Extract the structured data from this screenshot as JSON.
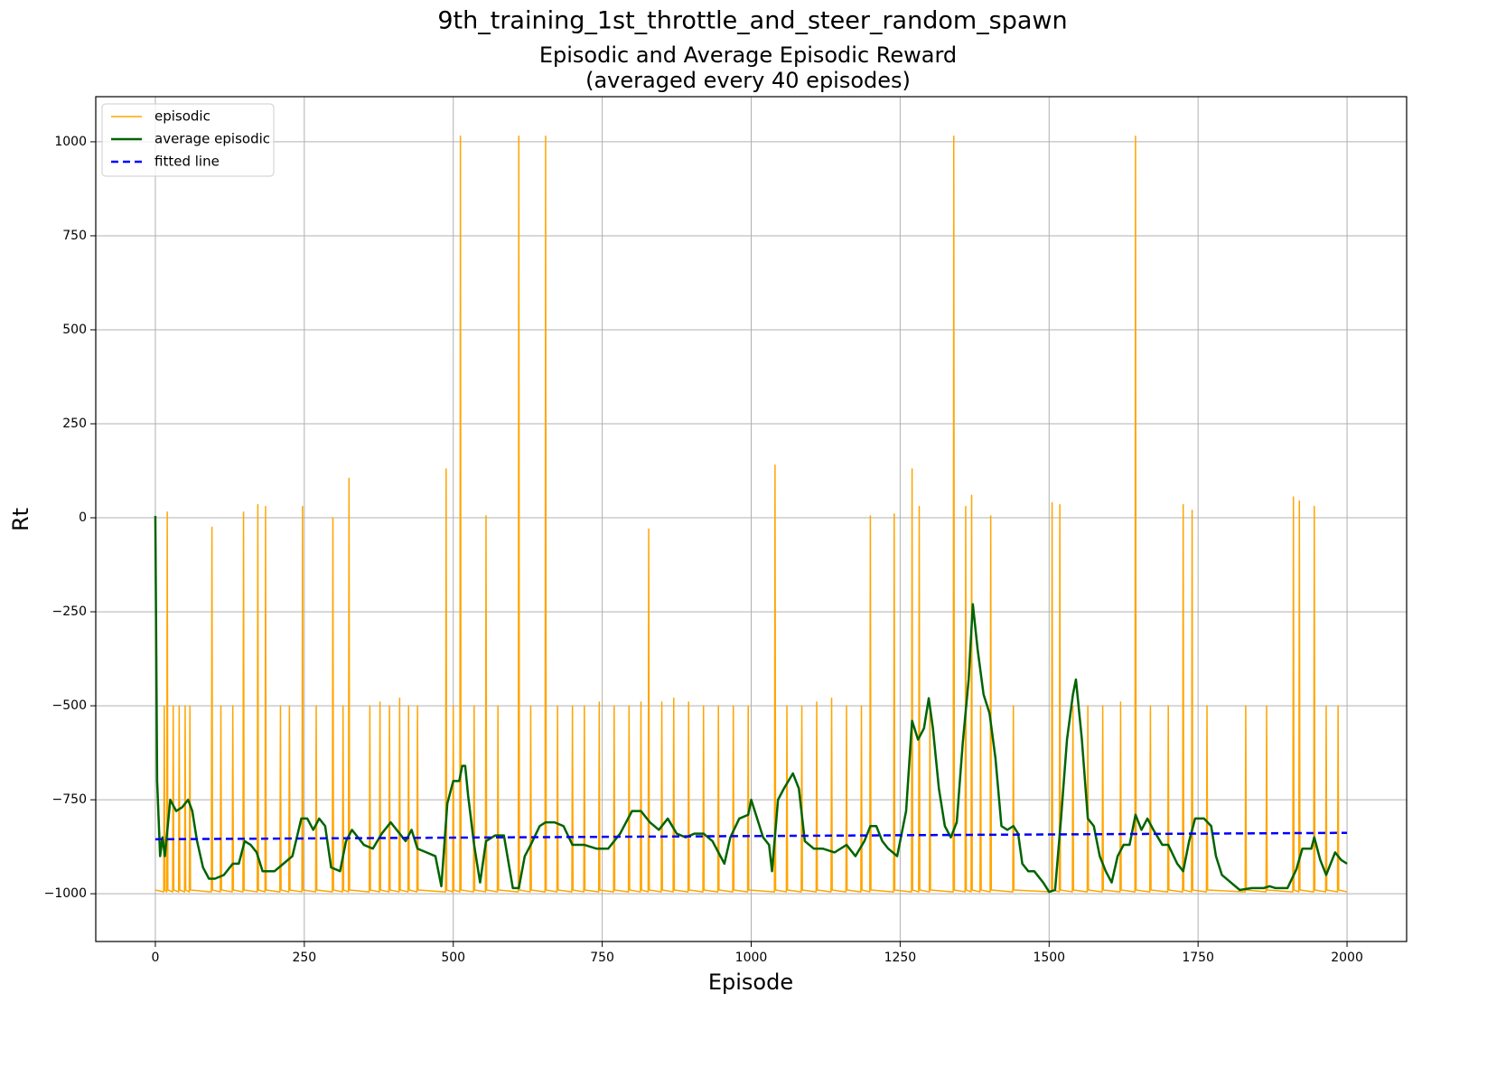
{
  "chart_data": {
    "type": "line",
    "suptitle": "9th_training_1st_throttle_and_steer_random_spawn",
    "title": [
      "Episodic and Average Episodic Reward",
      "(averaged every 40 episodes)"
    ],
    "x_label": "Episode",
    "y_label": "Rt",
    "xlim": [
      -100,
      2100
    ],
    "ylim": [
      -1127,
      1120
    ],
    "xticks": [
      0,
      250,
      500,
      750,
      1000,
      1250,
      1500,
      1750,
      2000
    ],
    "yticks": [
      {
        "value": -1000,
        "label": "−1000"
      },
      {
        "value": -750,
        "label": "−750"
      },
      {
        "value": -500,
        "label": "−500"
      },
      {
        "value": -250,
        "label": "−250"
      },
      0,
      250,
      500,
      750,
      1000
    ],
    "grid": true,
    "legend": "upper left",
    "series": [
      {
        "name": "episodic",
        "color": "#ffa500",
        "width": 1.5,
        "dash": false,
        "x": [
          0,
          14,
          15,
          16,
          19,
          20,
          21,
          29,
          30,
          31,
          39,
          40,
          41,
          49,
          50,
          51,
          57,
          58,
          59,
          94,
          95,
          96,
          109,
          110,
          111,
          129,
          130,
          131,
          147,
          148,
          149,
          171,
          172,
          173,
          184,
          185,
          186,
          209,
          210,
          211,
          224,
          225,
          226,
          246,
          247,
          248,
          269,
          270,
          271,
          297,
          298,
          299,
          314,
          315,
          316,
          324,
          325,
          326,
          359,
          360,
          361,
          376,
          377,
          378,
          392,
          393,
          394,
          409,
          410,
          411,
          424,
          425,
          426,
          439,
          440,
          441,
          487,
          488,
          489,
          499,
          500,
          501,
          511,
          512,
          513,
          534,
          535,
          536,
          554,
          555,
          556,
          574,
          575,
          576,
          609,
          610,
          611,
          629,
          630,
          631,
          654,
          655,
          656,
          674,
          675,
          676,
          699,
          700,
          701,
          719,
          720,
          721,
          744,
          745,
          746,
          769,
          770,
          771,
          794,
          795,
          796,
          814,
          815,
          816,
          827,
          828,
          829,
          849,
          850,
          851,
          869,
          870,
          871,
          894,
          895,
          896,
          919,
          920,
          921,
          944,
          945,
          946,
          969,
          970,
          971,
          994,
          995,
          996,
          1039,
          1040,
          1041,
          1059,
          1060,
          1061,
          1084,
          1085,
          1086,
          1109,
          1110,
          1111,
          1134,
          1135,
          1136,
          1159,
          1160,
          1161,
          1184,
          1185,
          1186,
          1199,
          1200,
          1201,
          1239,
          1240,
          1241,
          1269,
          1270,
          1271,
          1281,
          1282,
          1283,
          1299,
          1300,
          1301,
          1339,
          1340,
          1341,
          1359,
          1360,
          1361,
          1369,
          1370,
          1371,
          1384,
          1385,
          1386,
          1401,
          1402,
          1403,
          1439,
          1440,
          1441,
          1504,
          1505,
          1506,
          1517,
          1518,
          1519,
          1539,
          1540,
          1541,
          1564,
          1565,
          1566,
          1589,
          1590,
          1591,
          1619,
          1620,
          1621,
          1644,
          1645,
          1646,
          1669,
          1670,
          1671,
          1699,
          1700,
          1701,
          1724,
          1725,
          1726,
          1739,
          1740,
          1741,
          1764,
          1765,
          1766,
          1829,
          1830,
          1831,
          1864,
          1865,
          1866,
          1909,
          1910,
          1911,
          1919,
          1920,
          1921,
          1944,
          1945,
          1946,
          1964,
          1965,
          1966,
          1984,
          1985,
          1986,
          2000
        ],
        "values": [
          -990,
          -995,
          -500,
          -990,
          -995,
          15,
          -990,
          -995,
          -500,
          -990,
          -995,
          -500,
          -990,
          -995,
          -500,
          -990,
          -995,
          -500,
          -990,
          -995,
          -25,
          -990,
          -995,
          -500,
          -990,
          -995,
          -500,
          -990,
          -995,
          15,
          -990,
          -995,
          35,
          -990,
          -995,
          30,
          -990,
          -995,
          -500,
          -990,
          -995,
          -500,
          -990,
          -995,
          30,
          -990,
          -995,
          -500,
          -990,
          -995,
          0,
          -990,
          -995,
          -500,
          -990,
          -995,
          105,
          -990,
          -995,
          -500,
          -990,
          -995,
          -490,
          -990,
          -995,
          -500,
          -990,
          -995,
          -480,
          -990,
          -995,
          -500,
          -990,
          -995,
          -500,
          -990,
          -995,
          130,
          -990,
          -995,
          -500,
          -990,
          -995,
          1015,
          -990,
          -995,
          -500,
          -990,
          -995,
          5,
          -990,
          -995,
          -500,
          -990,
          -995,
          1015,
          -990,
          -995,
          -500,
          -990,
          -995,
          1015,
          -990,
          -995,
          -500,
          -990,
          -995,
          -500,
          -990,
          -995,
          -500,
          -990,
          -995,
          -490,
          -990,
          -995,
          -500,
          -990,
          -995,
          -500,
          -990,
          -995,
          -490,
          -990,
          -995,
          -30,
          -990,
          -995,
          -490,
          -990,
          -995,
          -480,
          -990,
          -995,
          -490,
          -990,
          -995,
          -500,
          -990,
          -995,
          -500,
          -990,
          -995,
          -500,
          -990,
          -995,
          -500,
          -990,
          -995,
          140,
          -990,
          -995,
          -500,
          -990,
          -995,
          -500,
          -990,
          -995,
          -490,
          -990,
          -995,
          -480,
          -990,
          -995,
          -500,
          -990,
          -995,
          -500,
          -990,
          -995,
          5,
          -990,
          -995,
          10,
          -990,
          -995,
          130,
          -990,
          -995,
          30,
          -990,
          -995,
          -500,
          -990,
          -995,
          1015,
          -990,
          -995,
          30,
          -990,
          -995,
          60,
          -990,
          -995,
          -500,
          -990,
          -995,
          5,
          -990,
          -995,
          -500,
          -990,
          -995,
          40,
          -990,
          -995,
          35,
          -990,
          -995,
          -500,
          -990,
          -995,
          -500,
          -990,
          -995,
          -500,
          -990,
          -995,
          -490,
          -990,
          -995,
          1015,
          -990,
          -995,
          -500,
          -990,
          -995,
          -500,
          -990,
          -995,
          35,
          -990,
          -995,
          20,
          -990,
          -995,
          -500,
          -990,
          -995,
          -500,
          -990,
          -995,
          -500,
          -990,
          -995,
          55,
          -990,
          -995,
          45,
          -990,
          -995,
          30,
          -990,
          -995,
          -500,
          -990,
          -995,
          -500,
          -990,
          -995
        ]
      },
      {
        "name": "average episodic",
        "color": "#006400",
        "width": 2.5,
        "dash": false,
        "x": [
          0,
          3,
          8,
          12,
          16,
          25,
          35,
          45,
          55,
          62,
          70,
          80,
          90,
          100,
          115,
          130,
          140,
          150,
          160,
          170,
          180,
          200,
          215,
          230,
          245,
          255,
          265,
          275,
          285,
          295,
          310,
          320,
          330,
          340,
          350,
          365,
          380,
          395,
          410,
          420,
          430,
          440,
          455,
          470,
          480,
          490,
          500,
          510,
          515,
          520,
          525,
          535,
          545,
          555,
          570,
          585,
          600,
          610,
          620,
          630,
          645,
          655,
          670,
          685,
          700,
          720,
          740,
          760,
          780,
          800,
          815,
          830,
          845,
          860,
          875,
          890,
          905,
          920,
          935,
          945,
          955,
          965,
          980,
          995,
          1000,
          1010,
          1020,
          1030,
          1035,
          1045,
          1055,
          1070,
          1080,
          1090,
          1105,
          1120,
          1140,
          1160,
          1175,
          1190,
          1200,
          1210,
          1220,
          1230,
          1245,
          1260,
          1270,
          1280,
          1290,
          1298,
          1305,
          1315,
          1325,
          1335,
          1345,
          1355,
          1365,
          1372,
          1380,
          1390,
          1400,
          1410,
          1420,
          1430,
          1440,
          1448,
          1455,
          1465,
          1475,
          1490,
          1500,
          1510,
          1520,
          1530,
          1540,
          1545,
          1555,
          1565,
          1575,
          1585,
          1595,
          1605,
          1615,
          1625,
          1635,
          1645,
          1655,
          1665,
          1675,
          1690,
          1700,
          1715,
          1725,
          1735,
          1745,
          1760,
          1772,
          1780,
          1790,
          1805,
          1820,
          1840,
          1860,
          1870,
          1880,
          1900,
          1915,
          1925,
          1940,
          1945,
          1955,
          1965,
          1980,
          1990,
          2000
        ],
        "values": [
          5,
          -700,
          -900,
          -850,
          -900,
          -750,
          -780,
          -770,
          -750,
          -780,
          -860,
          -930,
          -960,
          -960,
          -950,
          -920,
          -920,
          -860,
          -870,
          -890,
          -940,
          -940,
          -920,
          -900,
          -800,
          -800,
          -830,
          -800,
          -820,
          -930,
          -940,
          -860,
          -830,
          -850,
          -870,
          -880,
          -840,
          -810,
          -840,
          -860,
          -830,
          -880,
          -890,
          -900,
          -980,
          -760,
          -700,
          -700,
          -660,
          -660,
          -740,
          -870,
          -970,
          -860,
          -845,
          -845,
          -985,
          -985,
          -900,
          -870,
          -820,
          -810,
          -810,
          -820,
          -870,
          -870,
          -880,
          -880,
          -840,
          -780,
          -780,
          -810,
          -830,
          -800,
          -840,
          -850,
          -840,
          -840,
          -860,
          -890,
          -920,
          -850,
          -800,
          -790,
          -750,
          -800,
          -850,
          -870,
          -940,
          -750,
          -720,
          -680,
          -720,
          -860,
          -880,
          -880,
          -890,
          -870,
          -900,
          -860,
          -820,
          -820,
          -860,
          -880,
          -900,
          -780,
          -540,
          -590,
          -560,
          -480,
          -560,
          -720,
          -820,
          -850,
          -810,
          -600,
          -430,
          -230,
          -350,
          -470,
          -520,
          -640,
          -820,
          -830,
          -820,
          -840,
          -920,
          -940,
          -940,
          -970,
          -995,
          -990,
          -800,
          -590,
          -470,
          -430,
          -590,
          -800,
          -820,
          -900,
          -940,
          -970,
          -900,
          -870,
          -870,
          -790,
          -830,
          -800,
          -830,
          -870,
          -870,
          -920,
          -940,
          -860,
          -800,
          -800,
          -820,
          -900,
          -950,
          -970,
          -990,
          -985,
          -985,
          -980,
          -985,
          -985,
          -935,
          -880,
          -880,
          -850,
          -910,
          -950,
          -890,
          -910,
          -920
        ]
      },
      {
        "name": "fitted line",
        "color": "#0000ff",
        "width": 2.5,
        "dash": true,
        "x": [
          0,
          2000
        ],
        "values": [
          -855,
          -838
        ]
      }
    ]
  }
}
